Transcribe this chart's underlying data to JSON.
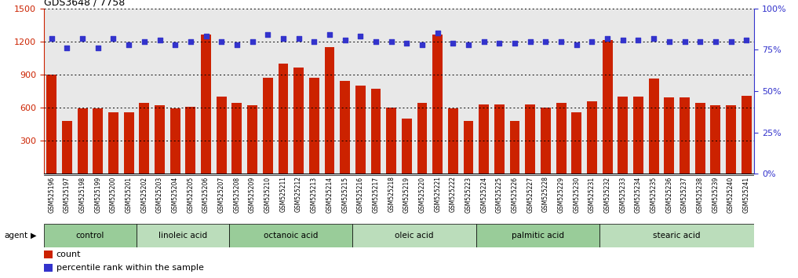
{
  "title": "GDS3648 / 7758",
  "samples": [
    "GSM525196",
    "GSM525197",
    "GSM525198",
    "GSM525199",
    "GSM525200",
    "GSM525201",
    "GSM525202",
    "GSM525203",
    "GSM525204",
    "GSM525205",
    "GSM525206",
    "GSM525207",
    "GSM525208",
    "GSM525209",
    "GSM525210",
    "GSM525211",
    "GSM525212",
    "GSM525213",
    "GSM525214",
    "GSM525215",
    "GSM525216",
    "GSM525217",
    "GSM525218",
    "GSM525219",
    "GSM525220",
    "GSM525221",
    "GSM525222",
    "GSM525223",
    "GSM525224",
    "GSM525225",
    "GSM525226",
    "GSM525227",
    "GSM525228",
    "GSM525229",
    "GSM525230",
    "GSM525231",
    "GSM525232",
    "GSM525233",
    "GSM525234",
    "GSM525235",
    "GSM525236",
    "GSM525237",
    "GSM525238",
    "GSM525239",
    "GSM525240",
    "GSM525241"
  ],
  "counts": [
    900,
    480,
    590,
    590,
    560,
    560,
    640,
    620,
    590,
    610,
    1260,
    700,
    640,
    620,
    870,
    1000,
    960,
    870,
    1150,
    840,
    800,
    770,
    600,
    500,
    640,
    1260,
    590,
    480,
    630,
    630,
    480,
    630,
    600,
    640,
    560,
    660,
    1210,
    700,
    700,
    860,
    690,
    690,
    640,
    620,
    620,
    710
  ],
  "percentile": [
    82,
    76,
    82,
    76,
    82,
    78,
    80,
    81,
    78,
    80,
    83,
    80,
    78,
    80,
    84,
    82,
    82,
    80,
    84,
    81,
    83,
    80,
    80,
    79,
    78,
    85,
    79,
    78,
    80,
    79,
    79,
    80,
    80,
    80,
    78,
    80,
    82,
    81,
    81,
    82,
    80,
    80,
    80,
    80,
    80,
    81
  ],
  "groups": [
    {
      "label": "control",
      "start": 0,
      "end": 6
    },
    {
      "label": "linoleic acid",
      "start": 6,
      "end": 12
    },
    {
      "label": "octanoic acid",
      "start": 12,
      "end": 20
    },
    {
      "label": "oleic acid",
      "start": 20,
      "end": 28
    },
    {
      "label": "palmitic acid",
      "start": 28,
      "end": 36
    },
    {
      "label": "stearic acid",
      "start": 36,
      "end": 46
    }
  ],
  "bar_color": "#cc2200",
  "dot_color": "#3333cc",
  "plot_bg_color": "#e8e8e8",
  "group_color_even": "#99cc99",
  "group_color_odd": "#bbddbb",
  "ylim_left": [
    0,
    1500
  ],
  "ylim_right": [
    0,
    100
  ],
  "yticks_left": [
    300,
    600,
    900,
    1200,
    1500
  ],
  "yticks_right": [
    0,
    25,
    50,
    75,
    100
  ]
}
